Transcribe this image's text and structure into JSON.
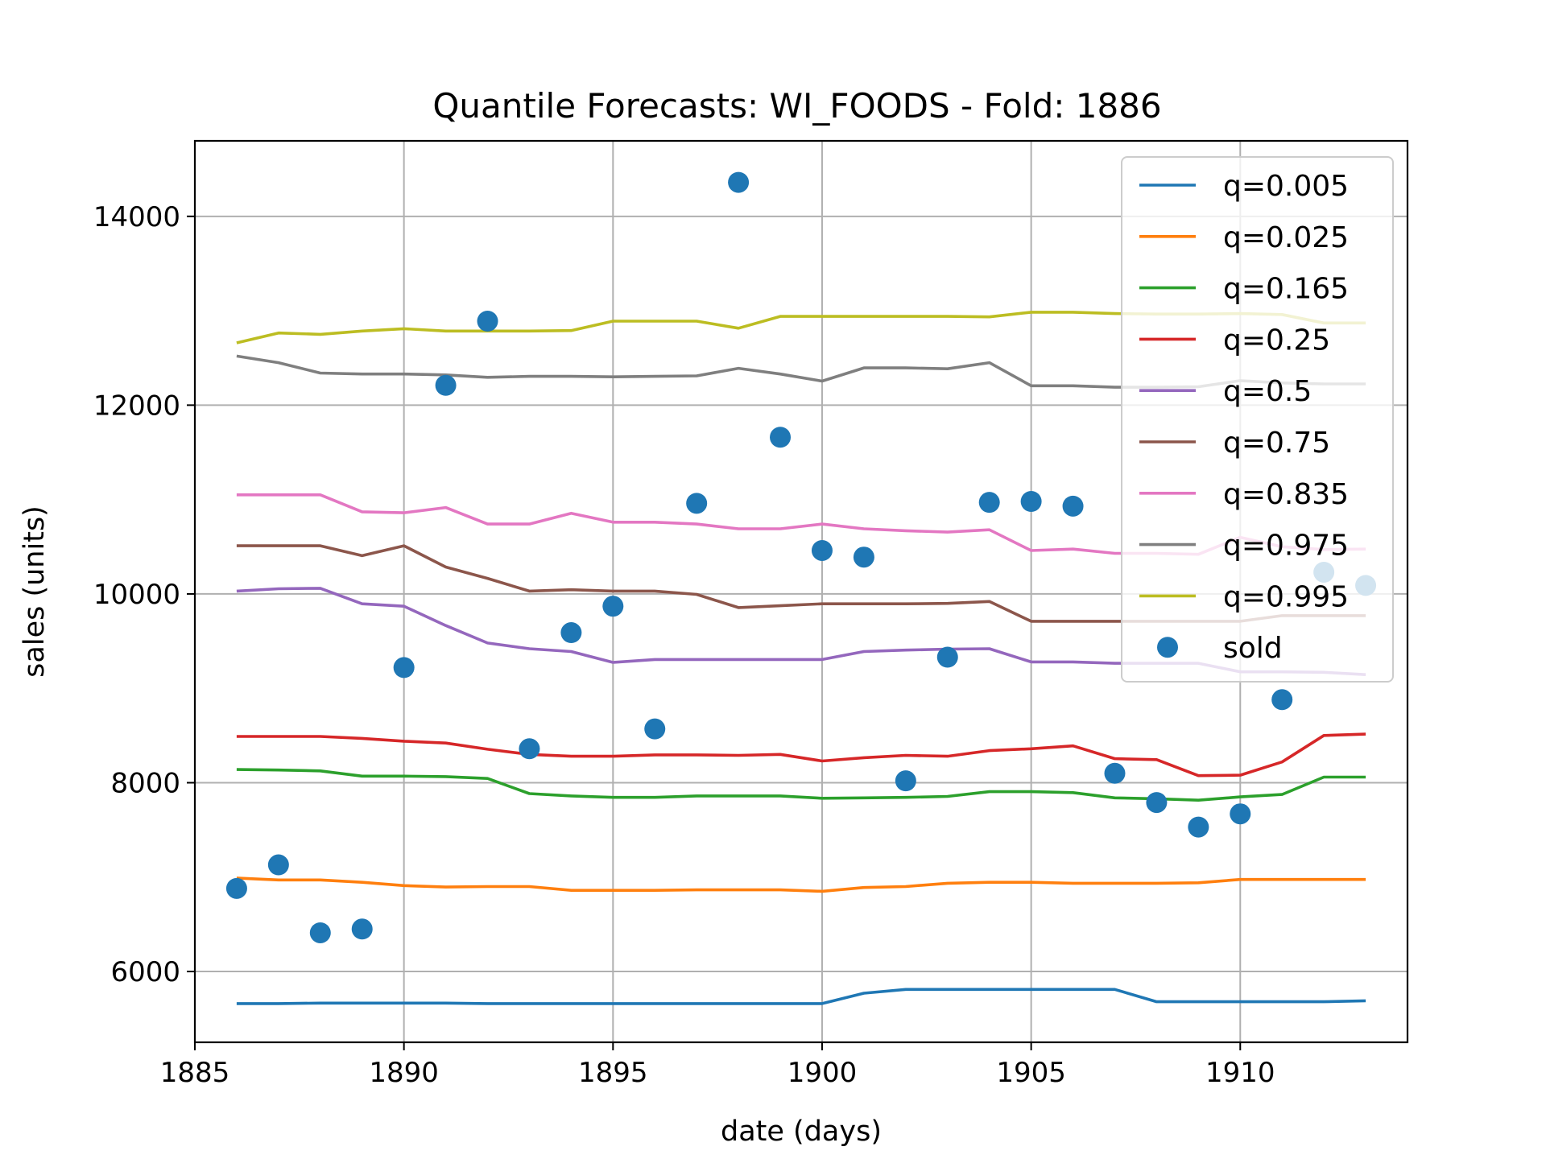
{
  "chart_data": {
    "type": "line",
    "title": "Quantile Forecasts: WI_FOODS - Fold: 1886",
    "xlabel": "date (days)",
    "ylabel": "sales (units)",
    "xlim": [
      1885,
      1914
    ],
    "ylim": [
      5250,
      14800
    ],
    "xticks": [
      1885,
      1890,
      1895,
      1900,
      1905,
      1910
    ],
    "yticks": [
      6000,
      8000,
      10000,
      12000,
      14000
    ],
    "grid": true,
    "legend_position": "upper right",
    "x": [
      1886,
      1887,
      1888,
      1889,
      1890,
      1891,
      1892,
      1893,
      1894,
      1895,
      1896,
      1897,
      1898,
      1899,
      1900,
      1901,
      1902,
      1903,
      1904,
      1905,
      1906,
      1907,
      1908,
      1909,
      1910,
      1911,
      1912,
      1913
    ],
    "series": [
      {
        "name": "q=0.005",
        "color": "#1f77b4",
        "values": [
          5660,
          5660,
          5665,
          5665,
          5665,
          5665,
          5660,
          5660,
          5660,
          5660,
          5660,
          5660,
          5660,
          5660,
          5660,
          5770,
          5810,
          5810,
          5810,
          5810,
          5810,
          5810,
          5680,
          5680,
          5680,
          5680,
          5680,
          5690
        ]
      },
      {
        "name": "q=0.025",
        "color": "#ff7f0e",
        "values": [
          6990,
          6970,
          6970,
          6945,
          6910,
          6895,
          6900,
          6900,
          6860,
          6860,
          6860,
          6865,
          6865,
          6865,
          6850,
          6890,
          6900,
          6935,
          6945,
          6945,
          6935,
          6935,
          6935,
          6940,
          6975,
          6975,
          6975,
          6975
        ]
      },
      {
        "name": "q=0.165",
        "color": "#2ca02c",
        "values": [
          8140,
          8135,
          8125,
          8070,
          8070,
          8065,
          8045,
          7885,
          7860,
          7845,
          7845,
          7860,
          7860,
          7860,
          7835,
          7840,
          7845,
          7855,
          7905,
          7905,
          7895,
          7840,
          7830,
          7815,
          7850,
          7875,
          8060,
          8060
        ]
      },
      {
        "name": "q=0.25",
        "color": "#d62728",
        "values": [
          8490,
          8490,
          8490,
          8470,
          8440,
          8420,
          8355,
          8300,
          8280,
          8280,
          8295,
          8295,
          8290,
          8300,
          8230,
          8265,
          8290,
          8280,
          8340,
          8360,
          8390,
          8255,
          8245,
          8075,
          8080,
          8220,
          8500,
          8515
        ]
      },
      {
        "name": "q=0.5",
        "color": "#9467bd",
        "values": [
          10030,
          10055,
          10060,
          9895,
          9870,
          9665,
          9480,
          9420,
          9390,
          9275,
          9305,
          9305,
          9305,
          9305,
          9305,
          9390,
          9405,
          9415,
          9420,
          9280,
          9280,
          9265,
          9265,
          9265,
          9175,
          9175,
          9170,
          9145
        ]
      },
      {
        "name": "q=0.75",
        "color": "#8c564b",
        "values": [
          10510,
          10510,
          10510,
          10405,
          10510,
          10285,
          10165,
          10030,
          10045,
          10030,
          10030,
          9995,
          9855,
          9875,
          9895,
          9895,
          9895,
          9900,
          9920,
          9710,
          9710,
          9710,
          9710,
          9710,
          9710,
          9770,
          9770,
          9770
        ]
      },
      {
        "name": "q=0.835",
        "color": "#e377c2",
        "values": [
          11050,
          11050,
          11050,
          10870,
          10860,
          10915,
          10740,
          10740,
          10855,
          10760,
          10760,
          10740,
          10690,
          10690,
          10740,
          10690,
          10670,
          10655,
          10680,
          10460,
          10475,
          10430,
          10430,
          10420,
          10600,
          10500,
          10470,
          10475
        ]
      },
      {
        "name": "q=0.975",
        "color": "#7f7f7f",
        "values": [
          12520,
          12450,
          12340,
          12330,
          12330,
          12320,
          12295,
          12305,
          12305,
          12300,
          12305,
          12310,
          12390,
          12330,
          12255,
          12395,
          12395,
          12385,
          12450,
          12205,
          12205,
          12190,
          12190,
          12195,
          12260,
          12235,
          12225,
          12225
        ]
      },
      {
        "name": "q=0.995",
        "color": "#bcbd22",
        "values": [
          12660,
          12765,
          12750,
          12785,
          12810,
          12785,
          12785,
          12785,
          12790,
          12890,
          12890,
          12890,
          12815,
          12940,
          12940,
          12940,
          12940,
          12940,
          12935,
          12985,
          12985,
          12970,
          12965,
          12965,
          12970,
          12960,
          12870,
          12870
        ]
      }
    ],
    "scatter": {
      "name": "sold",
      "color": "#1f77b4",
      "points": [
        {
          "x": 1886,
          "y": 6880
        },
        {
          "x": 1887,
          "y": 7130
        },
        {
          "x": 1888,
          "y": 6410
        },
        {
          "x": 1889,
          "y": 6450
        },
        {
          "x": 1890,
          "y": 9220
        },
        {
          "x": 1891,
          "y": 12210
        },
        {
          "x": 1892,
          "y": 12890
        },
        {
          "x": 1893,
          "y": 8360
        },
        {
          "x": 1894,
          "y": 9590
        },
        {
          "x": 1895,
          "y": 9870
        },
        {
          "x": 1896,
          "y": 8570
        },
        {
          "x": 1897,
          "y": 10960
        },
        {
          "x": 1898,
          "y": 14360
        },
        {
          "x": 1899,
          "y": 11660
        },
        {
          "x": 1900,
          "y": 10460
        },
        {
          "x": 1901,
          "y": 10390
        },
        {
          "x": 1902,
          "y": 8020
        },
        {
          "x": 1903,
          "y": 9330
        },
        {
          "x": 1904,
          "y": 10970
        },
        {
          "x": 1905,
          "y": 10980
        },
        {
          "x": 1906,
          "y": 10930
        },
        {
          "x": 1907,
          "y": 8100
        },
        {
          "x": 1908,
          "y": 7790
        },
        {
          "x": 1909,
          "y": 7530
        },
        {
          "x": 1910,
          "y": 7670
        },
        {
          "x": 1911,
          "y": 8880
        },
        {
          "x": 1912,
          "y": 10230
        },
        {
          "x": 1913,
          "y": 10090
        }
      ]
    }
  }
}
